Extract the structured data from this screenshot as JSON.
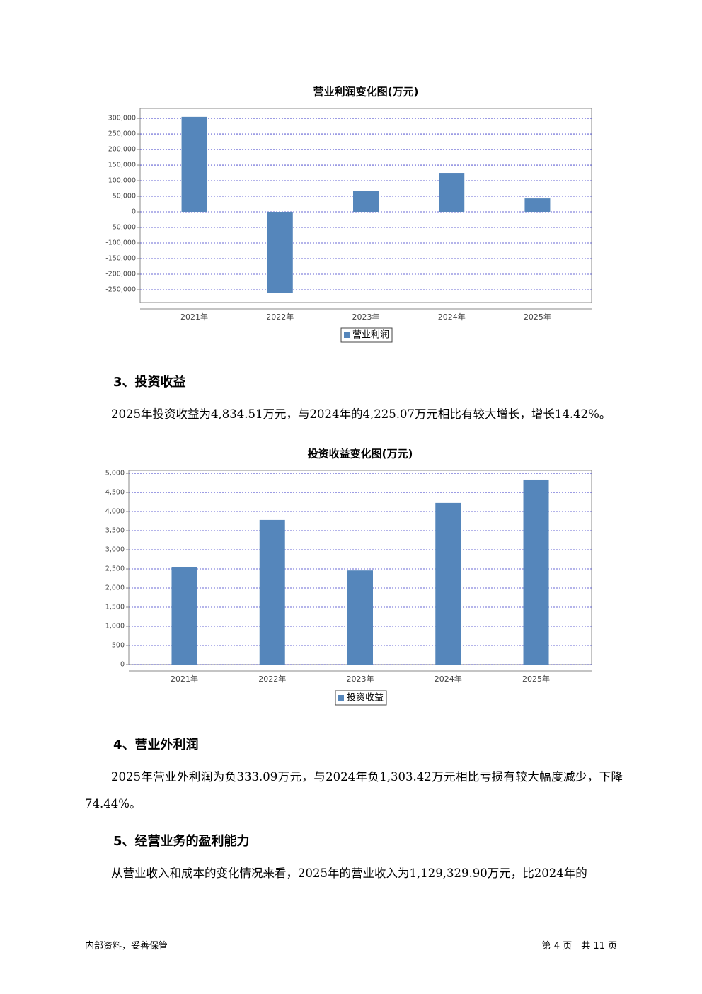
{
  "chart_data": [
    {
      "type": "bar",
      "title": "营业利润变化图(万元)",
      "categories": [
        "2021年",
        "2022年",
        "2023年",
        "2024年",
        "2025年"
      ],
      "series": [
        {
          "name": "营业利润",
          "color": "#5586bb",
          "values": [
            305000,
            -261000,
            66000,
            125000,
            43000
          ]
        }
      ],
      "ylim": [
        -291000,
        332000
      ],
      "yticks": [
        {
          "value": -250000,
          "label": "-250,000"
        },
        {
          "value": -200000,
          "label": "-200,000"
        },
        {
          "value": -150000,
          "label": "-150,000"
        },
        {
          "value": -100000,
          "label": "-100,000"
        },
        {
          "value": -50000,
          "label": "-50,000"
        },
        0,
        {
          "value": 50000,
          "label": "50,000"
        },
        {
          "value": 100000,
          "label": "100,000"
        },
        {
          "value": 150000,
          "label": "150,000"
        },
        {
          "value": 200000,
          "label": "200,000"
        },
        {
          "value": 250000,
          "label": "250,000"
        },
        {
          "value": 300000,
          "label": "300,000"
        }
      ],
      "grid": true
    },
    {
      "type": "bar",
      "title": "投资收益变化图(万元)",
      "categories": [
        "2021年",
        "2022年",
        "2023年",
        "2024年",
        "2025年"
      ],
      "series": [
        {
          "name": "投资收益",
          "color": "#5586bb",
          "values": [
            2540,
            3780,
            2460,
            4225.07,
            4834.51
          ]
        }
      ],
      "ylim": [
        0,
        5075
      ],
      "yticks": [
        0,
        500,
        {
          "value": 1000,
          "label": "1,000"
        },
        {
          "value": 1500,
          "label": "1,500"
        },
        {
          "value": 2000,
          "label": "2,000"
        },
        {
          "value": 2500,
          "label": "2,500"
        },
        {
          "value": 3000,
          "label": "3,000"
        },
        {
          "value": 3500,
          "label": "3,500"
        },
        {
          "value": 4000,
          "label": "4,000"
        },
        {
          "value": 4500,
          "label": "4,500"
        },
        {
          "value": 5000,
          "label": "5,000"
        }
      ],
      "grid": true
    }
  ],
  "sections": [
    {
      "heading": "3、投资收益",
      "paragraph": "2025年投资收益为4,834.51万元，与2024年的4,225.07万元相比有较大增长，增长14.42%。"
    },
    {
      "heading": "4、营业外利润",
      "paragraph": "2025年营业外利润为负333.09万元，与2024年负1,303.42万元相比亏损有较大幅度减少，下降74.44%。"
    },
    {
      "heading": "5、经营业务的盈利能力",
      "paragraph": "从营业收入和成本的变化情况来看，2025年的营业收入为1,129,329.90万元，比2024年的"
    }
  ],
  "footer": {
    "left": "内部资料，妥善保管",
    "right": "第 4 页　共 11 页"
  }
}
